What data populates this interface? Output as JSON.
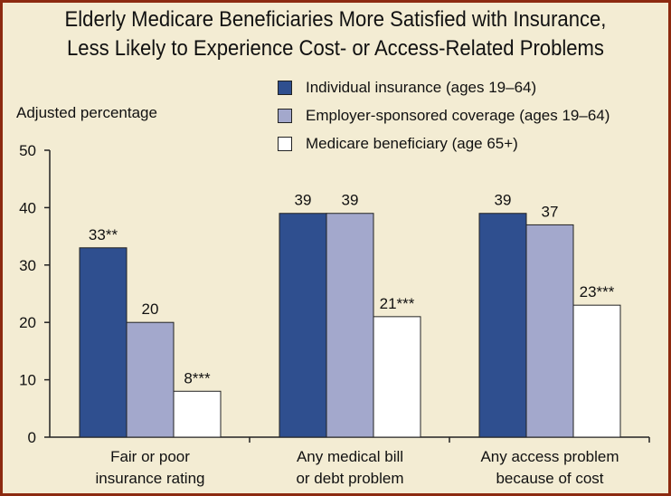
{
  "title_lines": [
    "Elderly Medicare Beneficiaries More Satisfied with Insurance,",
    "Less Likely to Experience Cost- or Access-Related Problems"
  ],
  "colors": {
    "individual": "#2f4f8f",
    "employer": "#a3a8cc",
    "medicare": "#ffffff",
    "frame": "#8c2a10",
    "background": "#f3ecd3"
  },
  "chart_data": {
    "type": "bar",
    "title": "Elderly Medicare Beneficiaries More Satisfied with Insurance, Less Likely to Experience Cost- or Access-Related Problems",
    "ylabel": "Adjusted percentage",
    "xlabel": "",
    "ylim": [
      0,
      50
    ],
    "yticks": [
      0,
      10,
      20,
      30,
      40,
      50
    ],
    "grid": false,
    "legend_position": "top-right",
    "categories": [
      [
        "Fair or poor",
        "insurance rating"
      ],
      [
        "Any medical bill",
        "or debt problem"
      ],
      [
        "Any access problem",
        "because of cost"
      ]
    ],
    "series": [
      {
        "name": "Individual insurance (ages 19–64)",
        "values": [
          33,
          39,
          39
        ],
        "labels": [
          "33**",
          "39",
          "39"
        ]
      },
      {
        "name": "Employer-sponsored coverage (ages 19–64)",
        "values": [
          20,
          39,
          37
        ],
        "labels": [
          "20",
          "39",
          "37"
        ]
      },
      {
        "name": "Medicare beneficiary (age 65+)",
        "values": [
          8,
          21,
          23
        ],
        "labels": [
          "8***",
          "21***",
          "23***"
        ]
      }
    ]
  }
}
